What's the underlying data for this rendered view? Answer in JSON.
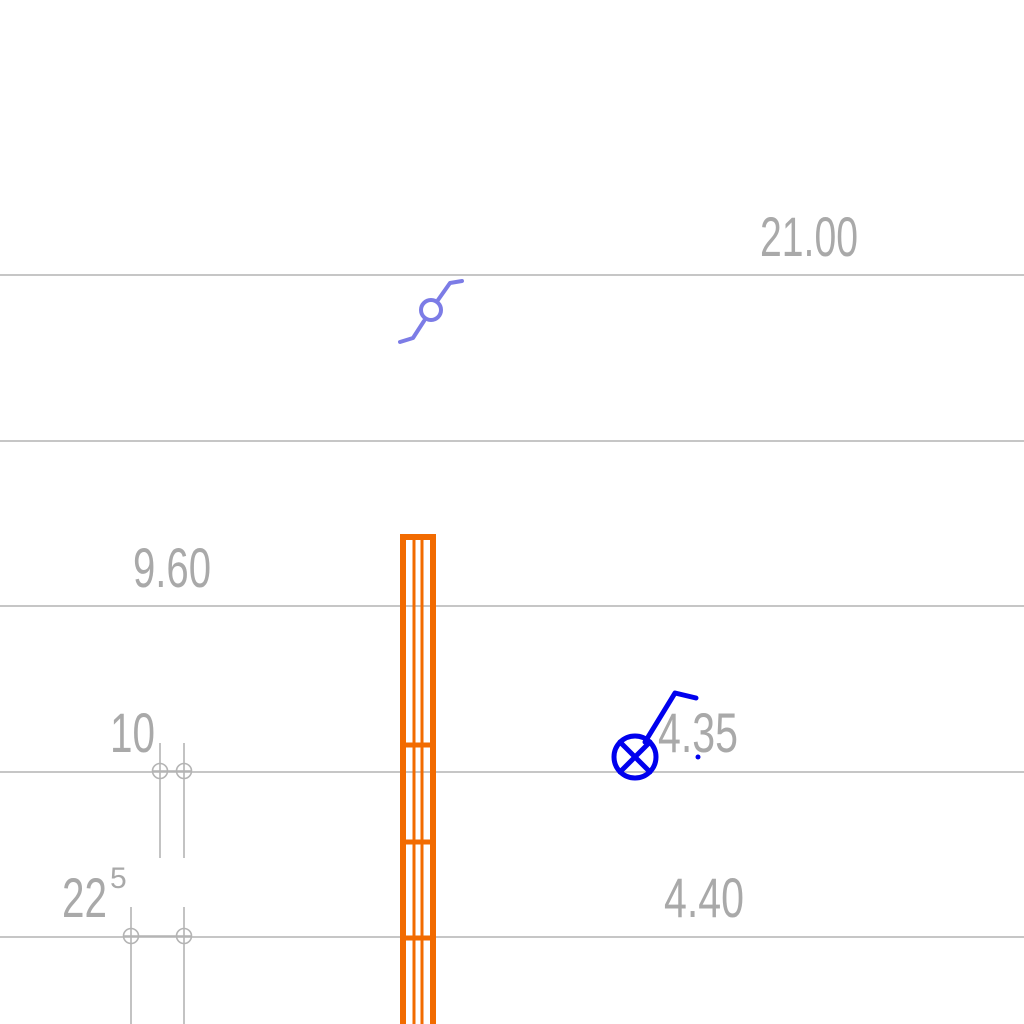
{
  "labels": {
    "top_right": "21.00",
    "left_upper": "9.60",
    "left_10": "10",
    "left_22": "22",
    "left_22_sup": "5",
    "right_mid": "4.35",
    "right_low": "4.40"
  },
  "colors": {
    "lines": "#b4b4b4",
    "text": "#a9a9a9",
    "column": "#f26b00",
    "symbol": "#0000ee",
    "symbol_faded": "#7c7ce6"
  },
  "symbols": {
    "upper": "switch-symbol-icon",
    "lower": "luminaire-switch-icon"
  }
}
